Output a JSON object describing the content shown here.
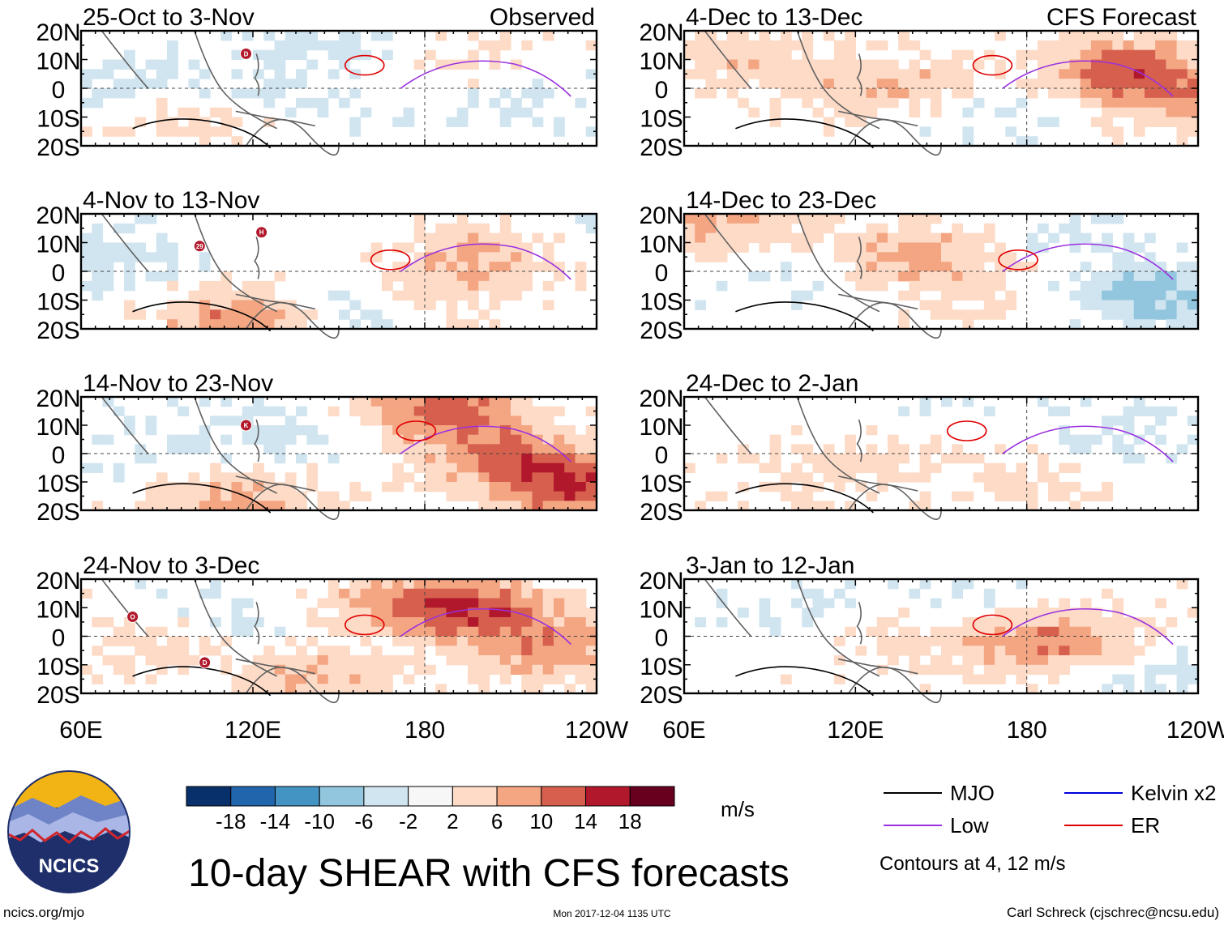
{
  "panels_left": [
    {
      "title": "25-Oct to 3-Nov",
      "tag": "Observed"
    },
    {
      "title": "4-Nov to 13-Nov",
      "tag": ""
    },
    {
      "title": "14-Nov to 23-Nov",
      "tag": ""
    },
    {
      "title": "24-Nov to 3-Dec",
      "tag": ""
    }
  ],
  "panels_right": [
    {
      "title": "4-Dec to 13-Dec",
      "tag": "CFS Forecast"
    },
    {
      "title": "14-Dec to 23-Dec",
      "tag": ""
    },
    {
      "title": "24-Dec to 2-Jan",
      "tag": ""
    },
    {
      "title": "3-Jan to 12-Jan",
      "tag": ""
    }
  ],
  "storm_markers": [
    {
      "panel": 0,
      "label": "D"
    },
    {
      "panel": 1,
      "label": "29"
    },
    {
      "panel": 1,
      "label": "H"
    },
    {
      "panel": 2,
      "label": "K"
    },
    {
      "panel": 3,
      "label": "O"
    },
    {
      "panel": 3,
      "label": "D"
    }
  ],
  "chart_data": {
    "type": "heatmap",
    "title": "10-day SHEAR with CFS forecasts",
    "variable": "vertical wind shear anomaly",
    "units": "m/s",
    "x_axis": {
      "range": [
        "60E",
        "120W"
      ],
      "ticks": [
        "60E",
        "120E",
        "180",
        "120W"
      ]
    },
    "y_axis": {
      "range": [
        "20S",
        "20N"
      ],
      "ticks": [
        "20N",
        "10N",
        "0",
        "10S",
        "20S"
      ]
    },
    "colorbar": {
      "ticks": [
        "-18",
        "-14",
        "-10",
        "-6",
        "-2",
        "2",
        "6",
        "10",
        "14",
        "18"
      ],
      "colors": [
        "#08306b",
        "#2166ac",
        "#4393c3",
        "#92c5de",
        "#d1e5f0",
        "#f7f7f7",
        "#fddbc7",
        "#f4a582",
        "#d6604d",
        "#b2182b",
        "#67001f"
      ]
    },
    "legend": [
      {
        "name": "MJO",
        "color": "#000000"
      },
      {
        "name": "Kelvin x2",
        "color": "#0000dd"
      },
      {
        "name": "Low",
        "color": "#9a30e0"
      },
      {
        "name": "ER",
        "color": "#e00000"
      }
    ],
    "contour_note": "Contours at 4, 12 m/s"
  },
  "footer": {
    "logo_text": "NCICS",
    "site": "ncics.org/mjo",
    "timestamp": "Mon 2017-12-04 1135 UTC",
    "author": "Carl Schreck (cjschrec@ncsu.edu)"
  }
}
